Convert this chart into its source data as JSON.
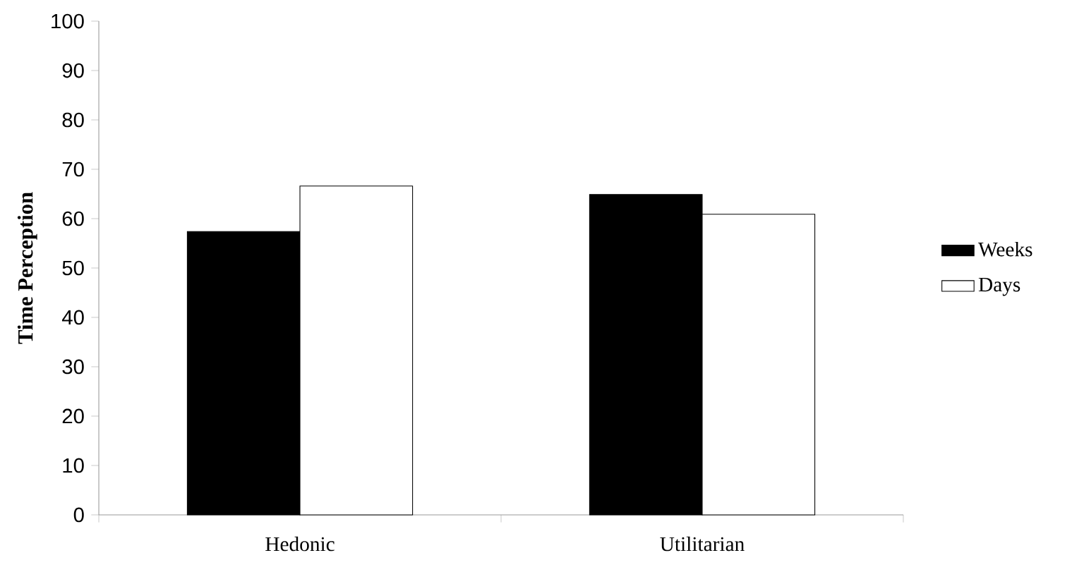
{
  "chart_data": {
    "type": "bar",
    "ylabel": "Time Perception",
    "categories": [
      "Hedonic",
      "Utilitarian"
    ],
    "series": [
      {
        "name": "Weeks",
        "color": "#000000",
        "values": [
          57.4,
          64.9
        ]
      },
      {
        "name": "Days",
        "color": "#ffffff",
        "values": [
          66.6,
          60.9
        ]
      }
    ],
    "ylim": [
      0,
      100
    ],
    "yticks": [
      0,
      10,
      20,
      30,
      40,
      50,
      60,
      70,
      80,
      90,
      100
    ],
    "grid": false,
    "legend": "right"
  }
}
